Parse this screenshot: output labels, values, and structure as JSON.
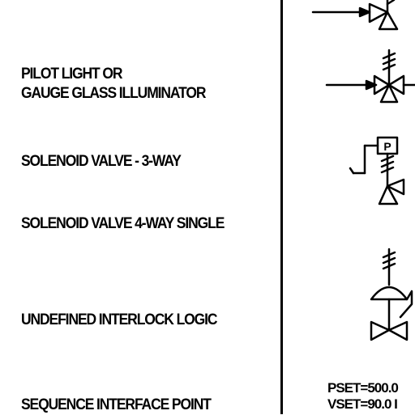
{
  "rows": {
    "pilot_light": [
      "PILOT LIGHT OR",
      "GAUGE GLASS ILLUMINATOR"
    ],
    "solenoid_3way": "SOLENOID VALVE - 3-WAY",
    "solenoid_4way": "SOLENOID VALVE 4-WAY SINGLE",
    "interlock": "UNDEFINED INTERLOCK LOGIC",
    "sequence": "SEQUENCE INTERFACE POINT"
  },
  "symbols": {
    "pilot_box_letter": "P",
    "pset": "PSET=500.0",
    "vset": "VSET=90.0 I"
  },
  "icons": [
    "valve-arrow-icon",
    "three-way-valve-icon",
    "solenoid-pilot-valve-icon",
    "diaphragm-valve-icon"
  ]
}
